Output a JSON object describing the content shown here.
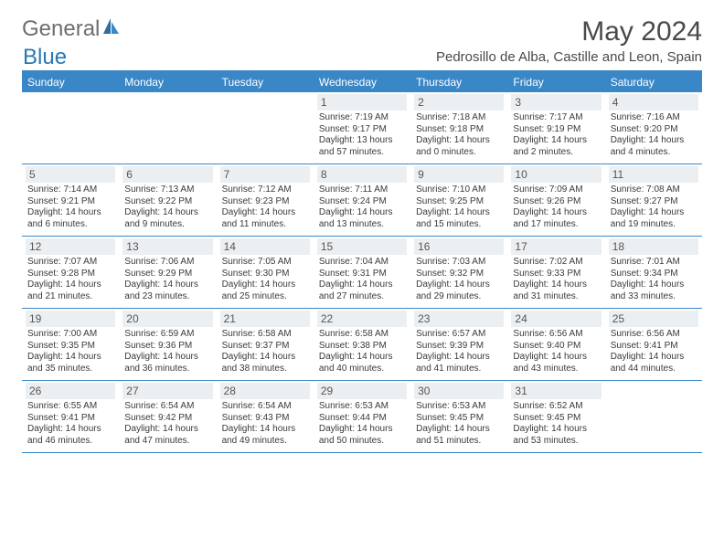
{
  "brand": {
    "part1": "General",
    "part2": "Blue"
  },
  "title": "May 2024",
  "subtitle": "Pedrosillo de Alba, Castille and Leon, Spain",
  "colors": {
    "accent": "#3a87c7",
    "header_band": "#3a87c7",
    "daynum_bg": "#eceff2",
    "text": "#3a3a3a",
    "title_text": "#4a4a4a",
    "logo_gray": "#6e6e6e",
    "logo_blue": "#2978b5",
    "white": "#ffffff"
  },
  "day_names": [
    "Sunday",
    "Monday",
    "Tuesday",
    "Wednesday",
    "Thursday",
    "Friday",
    "Saturday"
  ],
  "weeks": [
    [
      null,
      null,
      null,
      {
        "n": "1",
        "sunrise": "7:19 AM",
        "sunset": "9:17 PM",
        "daylight": "Daylight: 13 hours and 57 minutes."
      },
      {
        "n": "2",
        "sunrise": "7:18 AM",
        "sunset": "9:18 PM",
        "daylight": "Daylight: 14 hours and 0 minutes."
      },
      {
        "n": "3",
        "sunrise": "7:17 AM",
        "sunset": "9:19 PM",
        "daylight": "Daylight: 14 hours and 2 minutes."
      },
      {
        "n": "4",
        "sunrise": "7:16 AM",
        "sunset": "9:20 PM",
        "daylight": "Daylight: 14 hours and 4 minutes."
      }
    ],
    [
      {
        "n": "5",
        "sunrise": "7:14 AM",
        "sunset": "9:21 PM",
        "daylight": "Daylight: 14 hours and 6 minutes."
      },
      {
        "n": "6",
        "sunrise": "7:13 AM",
        "sunset": "9:22 PM",
        "daylight": "Daylight: 14 hours and 9 minutes."
      },
      {
        "n": "7",
        "sunrise": "7:12 AM",
        "sunset": "9:23 PM",
        "daylight": "Daylight: 14 hours and 11 minutes."
      },
      {
        "n": "8",
        "sunrise": "7:11 AM",
        "sunset": "9:24 PM",
        "daylight": "Daylight: 14 hours and 13 minutes."
      },
      {
        "n": "9",
        "sunrise": "7:10 AM",
        "sunset": "9:25 PM",
        "daylight": "Daylight: 14 hours and 15 minutes."
      },
      {
        "n": "10",
        "sunrise": "7:09 AM",
        "sunset": "9:26 PM",
        "daylight": "Daylight: 14 hours and 17 minutes."
      },
      {
        "n": "11",
        "sunrise": "7:08 AM",
        "sunset": "9:27 PM",
        "daylight": "Daylight: 14 hours and 19 minutes."
      }
    ],
    [
      {
        "n": "12",
        "sunrise": "7:07 AM",
        "sunset": "9:28 PM",
        "daylight": "Daylight: 14 hours and 21 minutes."
      },
      {
        "n": "13",
        "sunrise": "7:06 AM",
        "sunset": "9:29 PM",
        "daylight": "Daylight: 14 hours and 23 minutes."
      },
      {
        "n": "14",
        "sunrise": "7:05 AM",
        "sunset": "9:30 PM",
        "daylight": "Daylight: 14 hours and 25 minutes."
      },
      {
        "n": "15",
        "sunrise": "7:04 AM",
        "sunset": "9:31 PM",
        "daylight": "Daylight: 14 hours and 27 minutes."
      },
      {
        "n": "16",
        "sunrise": "7:03 AM",
        "sunset": "9:32 PM",
        "daylight": "Daylight: 14 hours and 29 minutes."
      },
      {
        "n": "17",
        "sunrise": "7:02 AM",
        "sunset": "9:33 PM",
        "daylight": "Daylight: 14 hours and 31 minutes."
      },
      {
        "n": "18",
        "sunrise": "7:01 AM",
        "sunset": "9:34 PM",
        "daylight": "Daylight: 14 hours and 33 minutes."
      }
    ],
    [
      {
        "n": "19",
        "sunrise": "7:00 AM",
        "sunset": "9:35 PM",
        "daylight": "Daylight: 14 hours and 35 minutes."
      },
      {
        "n": "20",
        "sunrise": "6:59 AM",
        "sunset": "9:36 PM",
        "daylight": "Daylight: 14 hours and 36 minutes."
      },
      {
        "n": "21",
        "sunrise": "6:58 AM",
        "sunset": "9:37 PM",
        "daylight": "Daylight: 14 hours and 38 minutes."
      },
      {
        "n": "22",
        "sunrise": "6:58 AM",
        "sunset": "9:38 PM",
        "daylight": "Daylight: 14 hours and 40 minutes."
      },
      {
        "n": "23",
        "sunrise": "6:57 AM",
        "sunset": "9:39 PM",
        "daylight": "Daylight: 14 hours and 41 minutes."
      },
      {
        "n": "24",
        "sunrise": "6:56 AM",
        "sunset": "9:40 PM",
        "daylight": "Daylight: 14 hours and 43 minutes."
      },
      {
        "n": "25",
        "sunrise": "6:56 AM",
        "sunset": "9:41 PM",
        "daylight": "Daylight: 14 hours and 44 minutes."
      }
    ],
    [
      {
        "n": "26",
        "sunrise": "6:55 AM",
        "sunset": "9:41 PM",
        "daylight": "Daylight: 14 hours and 46 minutes."
      },
      {
        "n": "27",
        "sunrise": "6:54 AM",
        "sunset": "9:42 PM",
        "daylight": "Daylight: 14 hours and 47 minutes."
      },
      {
        "n": "28",
        "sunrise": "6:54 AM",
        "sunset": "9:43 PM",
        "daylight": "Daylight: 14 hours and 49 minutes."
      },
      {
        "n": "29",
        "sunrise": "6:53 AM",
        "sunset": "9:44 PM",
        "daylight": "Daylight: 14 hours and 50 minutes."
      },
      {
        "n": "30",
        "sunrise": "6:53 AM",
        "sunset": "9:45 PM",
        "daylight": "Daylight: 14 hours and 51 minutes."
      },
      {
        "n": "31",
        "sunrise": "6:52 AM",
        "sunset": "9:45 PM",
        "daylight": "Daylight: 14 hours and 53 minutes."
      },
      null
    ]
  ]
}
